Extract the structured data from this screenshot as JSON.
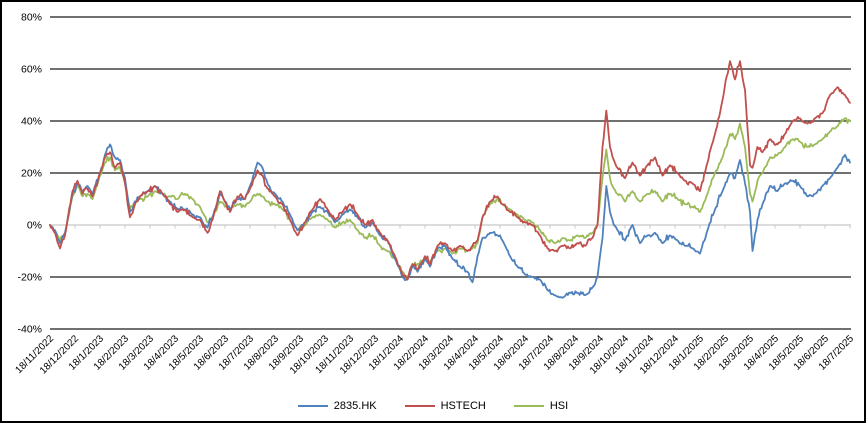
{
  "chart_data": {
    "type": "line",
    "title": "",
    "xlabel": "",
    "ylabel": "",
    "grid": "horizontal",
    "legend_position": "bottom-center",
    "colors": {
      "gridline": "#1a1a1a",
      "zero_line": "#c8c8c8",
      "background": "#ffffff",
      "border": "#000000"
    },
    "y_axis": {
      "tick_labels": [
        "80%",
        "60%",
        "40%",
        "20%",
        "0%",
        "-20%",
        "-40%"
      ],
      "tick_values": [
        80,
        60,
        40,
        20,
        0,
        -20,
        -40
      ],
      "range": [
        -40,
        80
      ]
    },
    "x_axis": {
      "tick_labels": [
        "18/11/2022",
        "18/12/2022",
        "18/1/2023",
        "18/2/2023",
        "18/3/2023",
        "18/4/2023",
        "18/5/2023",
        "18/6/2023",
        "18/7/2023",
        "18/8/2023",
        "18/9/2023",
        "18/10/2023",
        "18/11/2023",
        "18/12/2023",
        "18/1/2024",
        "18/2/2024",
        "18/3/2024",
        "18/4/2024",
        "18/5/2024",
        "18/6/2024",
        "18/7/2024",
        "18/8/2024",
        "18/9/2024",
        "18/10/2024",
        "18/11/2024",
        "18/12/2024",
        "18/1/2025",
        "18/2/2025",
        "18/3/2025",
        "18/4/2025",
        "18/5/2025",
        "18/6/2025",
        "18/7/2025"
      ]
    },
    "x_months": [
      0.0,
      0.2,
      0.4,
      0.6,
      0.9,
      1.1,
      1.3,
      1.5,
      1.7,
      2.0,
      2.2,
      2.4,
      2.6,
      2.8,
      3.0,
      3.2,
      3.4,
      3.6,
      3.9,
      4.2,
      4.5,
      4.8,
      5.1,
      5.4,
      5.7,
      6.0,
      6.3,
      6.5,
      6.8,
      7.0,
      7.2,
      7.5,
      7.8,
      8.0,
      8.3,
      8.5,
      8.7,
      9.0,
      9.3,
      9.6,
      9.9,
      10.2,
      10.5,
      10.8,
      11.1,
      11.4,
      11.7,
      12.0,
      12.3,
      12.6,
      12.9,
      13.2,
      13.5,
      13.8,
      14.1,
      14.3,
      14.5,
      14.7,
      15.0,
      15.2,
      15.5,
      15.8,
      16.1,
      16.4,
      16.7,
      16.9,
      17.1,
      17.3,
      17.6,
      17.9,
      18.1,
      18.4,
      18.7,
      19.0,
      19.3,
      19.6,
      19.9,
      20.2,
      20.5,
      20.8,
      21.1,
      21.4,
      21.7,
      21.9,
      22.1,
      22.25,
      22.4,
      22.55,
      22.7,
      23.0,
      23.3,
      23.6,
      23.9,
      24.2,
      24.5,
      24.8,
      25.1,
      25.4,
      25.7,
      26.0,
      26.3,
      26.6,
      26.9,
      27.2,
      27.4,
      27.6,
      27.8,
      28.0,
      28.1,
      28.3,
      28.5,
      28.8,
      29.1,
      29.4,
      29.7,
      30.0,
      30.3,
      30.6,
      30.9,
      31.2,
      31.5,
      31.8,
      32.0
    ],
    "series": [
      {
        "name": "2835.HK",
        "color": "#4F81BD",
        "values": [
          0,
          -2,
          -7,
          -3,
          12,
          16,
          13,
          15,
          12,
          20,
          27,
          31,
          26,
          25,
          18,
          5,
          9,
          11,
          13,
          15,
          12,
          9,
          6,
          6,
          4,
          3,
          -1,
          3,
          12,
          9,
          6,
          10,
          10,
          15,
          24,
          22,
          16,
          12,
          9,
          4,
          -2,
          1,
          5,
          7,
          5,
          1,
          4,
          6,
          3,
          -1,
          1,
          -4,
          -6,
          -13,
          -20,
          -21,
          -16,
          -18,
          -13,
          -16,
          -9,
          -8,
          -13,
          -16,
          -18,
          -22,
          -12,
          -5,
          -3,
          -4,
          -6,
          -12,
          -16,
          -19,
          -20,
          -21,
          -25,
          -27,
          -28,
          -26,
          -26,
          -27,
          -24,
          -20,
          -5,
          15,
          5,
          0,
          -2,
          -6,
          0,
          -7,
          -4,
          -3,
          -7,
          -4,
          -6,
          -8,
          -9,
          -11,
          -2,
          6,
          13,
          20,
          18,
          25,
          16,
          5,
          -10,
          2,
          8,
          15,
          13,
          16,
          17,
          15,
          11,
          12,
          15,
          18,
          22,
          27,
          24
        ]
      },
      {
        "name": "HSTECH",
        "color": "#C0504D",
        "values": [
          0,
          -3,
          -9,
          -4,
          13,
          17,
          12,
          14,
          11,
          20,
          26,
          28,
          22,
          24,
          16,
          3,
          8,
          11,
          13,
          15,
          12,
          8,
          5,
          6,
          3,
          2,
          -3,
          2,
          13,
          9,
          5,
          11,
          10,
          14,
          21,
          19,
          14,
          11,
          8,
          2,
          -4,
          1,
          6,
          10,
          6,
          2,
          5,
          8,
          4,
          0,
          2,
          -3,
          -6,
          -12,
          -19,
          -21,
          -15,
          -17,
          -12,
          -15,
          -8,
          -7,
          -10,
          -8,
          -10,
          -8,
          -6,
          3,
          9,
          11,
          8,
          5,
          3,
          1,
          0,
          -4,
          -9,
          -10,
          -8,
          -9,
          -7,
          -8,
          -5,
          0,
          30,
          44,
          30,
          25,
          22,
          18,
          24,
          19,
          23,
          26,
          19,
          23,
          20,
          17,
          16,
          13,
          24,
          35,
          48,
          63,
          56,
          63,
          52,
          23,
          22,
          30,
          28,
          33,
          31,
          35,
          40,
          41,
          39,
          41,
          43,
          50,
          53,
          50,
          47
        ]
      },
      {
        "name": "HSI",
        "color": "#9BBB59",
        "values": [
          0,
          -2,
          -6,
          -3,
          11,
          15,
          11,
          12,
          10,
          19,
          24,
          26,
          21,
          22,
          16,
          6,
          9,
          10,
          11,
          13,
          12,
          11,
          10,
          12,
          10,
          7,
          1,
          3,
          9,
          7,
          6,
          8,
          7,
          9,
          12,
          11,
          9,
          8,
          6,
          2,
          -2,
          0,
          3,
          4,
          2,
          -1,
          1,
          2,
          -2,
          -5,
          -4,
          -8,
          -10,
          -13,
          -18,
          -20,
          -16,
          -15,
          -13,
          -14,
          -10,
          -9,
          -11,
          -9,
          -10,
          -9,
          -7,
          3,
          8,
          10,
          8,
          6,
          4,
          2,
          1,
          -2,
          -6,
          -7,
          -5,
          -6,
          -4,
          -5,
          -3,
          0,
          18,
          29,
          18,
          14,
          12,
          9,
          13,
          9,
          12,
          13,
          9,
          12,
          10,
          8,
          7,
          5,
          12,
          20,
          26,
          35,
          33,
          39,
          30,
          12,
          9,
          17,
          20,
          26,
          27,
          30,
          33,
          32,
          30,
          31,
          33,
          36,
          38,
          41,
          40
        ]
      }
    ]
  }
}
